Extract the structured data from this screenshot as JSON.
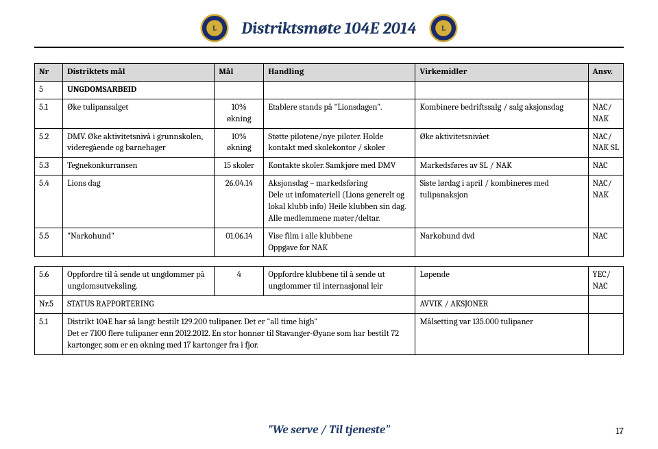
{
  "page_title": "Distriktsmøte 104E  2014",
  "footer_text": "\"We serve / Til tjeneste\"",
  "page_number": "17",
  "head": {
    "nr": "Nr",
    "mal1": "Distriktets mål",
    "mal2": "Mål",
    "hand": "Handling",
    "virk": "Virkemidler",
    "ansv": "Ansv."
  },
  "rows": [
    {
      "nr": "5",
      "mal1": "UNGDOMSARBEID",
      "section": true
    },
    {
      "nr": "5.1",
      "mal1": "Øke tulipansalget",
      "mal2": "10% økning",
      "hand": "Etablere stands på \"Lionsdagen\".",
      "virk": "Kombinere bedriftssalg / salg aksjonsdag",
      "ansv": "NAC/ NAK"
    },
    {
      "nr": "5.2",
      "mal1": "DMV. Øke  aktivitetsnivå i grunnskolen, videregående og barnehager",
      "mal2": "10% økning",
      "hand": "Støtte pilotene/nye piloter. Holde kontakt med skolekontor / skoler",
      "virk": "Øke aktivitetsnivået",
      "ansv": "NAC/ NAK SL"
    },
    {
      "nr": "5.3",
      "mal1": "Tegnekonkurransen",
      "mal2": "15 skoler",
      "hand": "Kontakte skoler. Samkjøre med DMV",
      "virk": "Markedsføres av SL / NAK",
      "ansv": "NAC"
    },
    {
      "nr": "5.4",
      "mal1": "Lions dag",
      "mal2": "26.04.14",
      "hand": "Aksjonsdag – markedsføring\nDele ut infomateriell (Lions generelt og lokal klubb info) Heile klubben sin dag. Alle medlemmene møter/deltar.",
      "virk": "Siste lørdag i april / kombineres med tulipanaksjon",
      "ansv": "NAC/ NAK"
    },
    {
      "nr": "5.5",
      "mal1": "\"Narkohund\"",
      "mal2": "01.06.14",
      "hand": "Vise film i alle klubbene\nOppgave for NAK",
      "virk": "Narkohund dvd",
      "ansv": "NAC"
    },
    {
      "nr": "5.6",
      "mal1": "Oppfordre til å sende ut ungdommer på ungdomsutveksling.",
      "mal2": "4",
      "hand": "Oppfordre klubbene til å sende ut ungdommer til internasjonal leir",
      "virk": "Løpende",
      "ansv": "YEC/ NAC",
      "gap_before": true
    },
    {
      "nr": "Nr.5",
      "mal1": "STATUS RAPPORTERING",
      "virk": "AVVIK / AKSJONER",
      "span_hand": true
    },
    {
      "nr": "5.1",
      "mal1_full": "Distrikt 104E har så langt bestilt 129.200 tulipaner. Det er \"all time high\"\nDet er 7100 flere tulipaner enn 2012.2012. En stor honnør til Stavanger-Øyane som har bestilt 72 kartonger, som er en økning med 17 kartonger fra i fjor.",
      "virk": "Målsetting var 135.000 tulipaner",
      "wide": true
    }
  ]
}
